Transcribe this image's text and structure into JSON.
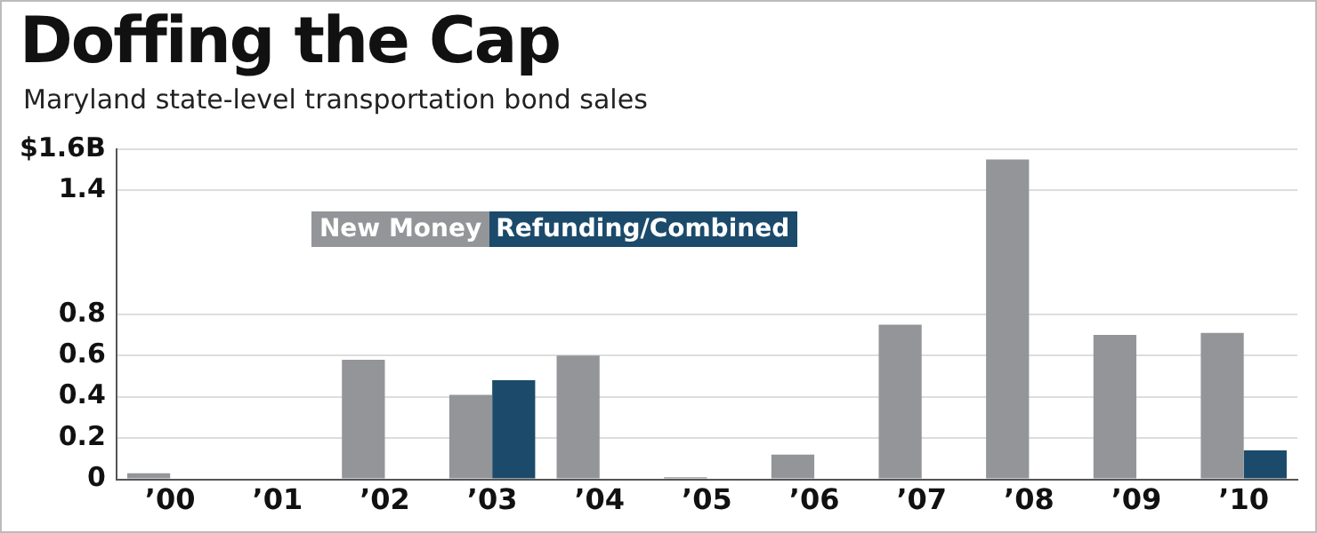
{
  "chart_data": {
    "type": "bar",
    "title": "Doffing the Cap",
    "subtitle": "Maryland state-level transportation bond sales",
    "categories": [
      "’00",
      "’01",
      "’02",
      "’03",
      "’04",
      "’05",
      "’06",
      "’07",
      "’08",
      "’09",
      "’10"
    ],
    "series": [
      {
        "name": "New Money",
        "color": "#939598",
        "values": [
          0.03,
          null,
          0.58,
          0.41,
          0.6,
          0.01,
          0.12,
          0.75,
          1.55,
          0.7,
          0.71
        ]
      },
      {
        "name": "Refunding/Combined",
        "color": "#1b4a6b",
        "values": [
          null,
          null,
          null,
          0.48,
          null,
          null,
          null,
          null,
          null,
          null,
          0.14
        ]
      }
    ],
    "ylim": [
      0,
      1.6
    ],
    "yticks": [
      0,
      0.2,
      0.4,
      0.6,
      0.8,
      1.4,
      {
        "value": 1.6,
        "label": "$1.6B"
      }
    ],
    "grid": "y",
    "legend": "top left"
  }
}
